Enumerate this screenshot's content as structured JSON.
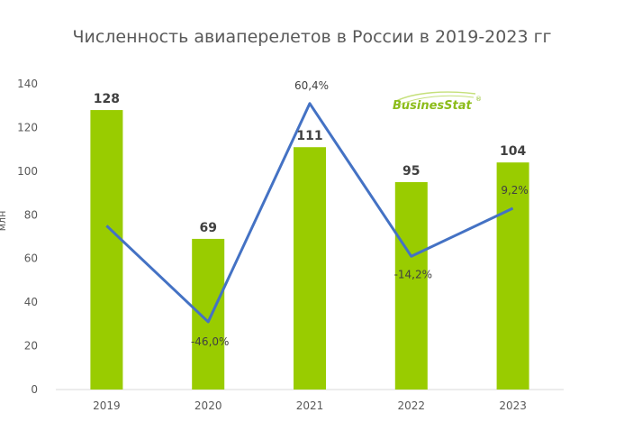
{
  "chart_data": {
    "type": "bar",
    "title": "Численность авиаперелетов в России в 2019-2023 гг",
    "ylabel": "млн",
    "xlabel": "",
    "ylim": [
      0,
      140
    ],
    "yticks": [
      0,
      20,
      40,
      60,
      80,
      100,
      120,
      140
    ],
    "grid": false,
    "legend": "none",
    "categories": [
      "2019",
      "2020",
      "2021",
      "2022",
      "2023"
    ],
    "series": [
      {
        "kind": "bar",
        "color": "#99cc00",
        "values": [
          128,
          69,
          111,
          95,
          104
        ],
        "labels": [
          "128",
          "69",
          "111",
          "95",
          "104"
        ]
      },
      {
        "kind": "line",
        "color": "#4472c4",
        "values": [
          75,
          31,
          131,
          61,
          83
        ],
        "labels": [
          "",
          "-46,0%",
          "60,4%",
          "-14,2%",
          "9,2%"
        ]
      }
    ]
  },
  "brand": {
    "text": "BusinesStat",
    "mark": "®",
    "color": "#8cbc1a"
  }
}
